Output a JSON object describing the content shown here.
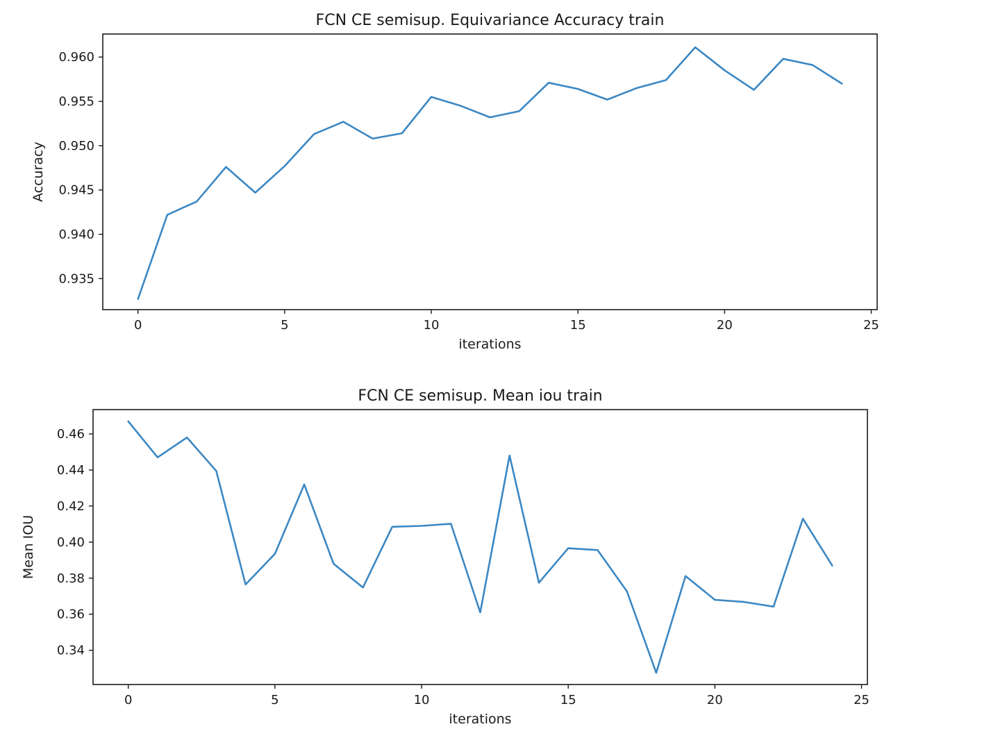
{
  "colors": {
    "series": "#3b87c3"
  },
  "chart_data": [
    {
      "type": "line",
      "title": "FCN CE semisup. Equivariance Accuracy train",
      "xlabel": "iterations",
      "ylabel": "Accuracy",
      "xlim": [
        -1.2,
        25.2
      ],
      "ylim": [
        0.9315,
        0.9626
      ],
      "xticks": [
        0,
        5,
        10,
        15,
        20,
        25
      ],
      "xtick_labels": [
        "0",
        "5",
        "10",
        "15",
        "20",
        "25"
      ],
      "yticks": [
        0.935,
        0.94,
        0.945,
        0.95,
        0.955,
        0.96
      ],
      "ytick_labels": [
        "0.935",
        "0.940",
        "0.945",
        "0.950",
        "0.955",
        "0.960"
      ],
      "grid": false,
      "series": [
        {
          "x": [
            0,
            1,
            2,
            3,
            4,
            5,
            6,
            7,
            8,
            9,
            10,
            11,
            12,
            13,
            14,
            15,
            16,
            17,
            18,
            19,
            20,
            21,
            22,
            23,
            24
          ],
          "values": [
            0.9327,
            0.9422,
            0.9437,
            0.9476,
            0.9447,
            0.9477,
            0.9513,
            0.9527,
            0.9508,
            0.9514,
            0.9555,
            0.9545,
            0.9532,
            0.9539,
            0.9571,
            0.9564,
            0.9552,
            0.9565,
            0.9574,
            0.9611,
            0.9585,
            0.9563,
            0.9598,
            0.9591,
            0.957
          ]
        }
      ]
    },
    {
      "type": "line",
      "title": "FCN CE semisup. Mean iou train",
      "xlabel": "iterations",
      "ylabel": "Mean IOU",
      "xlim": [
        -1.2,
        25.2
      ],
      "ylim": [
        0.321,
        0.4735
      ],
      "xticks": [
        0,
        5,
        10,
        15,
        20,
        25
      ],
      "xtick_labels": [
        "0",
        "5",
        "10",
        "15",
        "20",
        "25"
      ],
      "yticks": [
        0.34,
        0.36,
        0.38,
        0.4,
        0.42,
        0.44,
        0.46
      ],
      "ytick_labels": [
        "0.34",
        "0.36",
        "0.38",
        "0.40",
        "0.42",
        "0.44",
        "0.46"
      ],
      "grid": false,
      "series": [
        {
          "x": [
            0,
            1,
            2,
            3,
            4,
            5,
            6,
            7,
            8,
            9,
            10,
            11,
            12,
            13,
            14,
            15,
            16,
            17,
            18,
            19,
            20,
            21,
            22,
            23,
            24
          ],
          "values": [
            0.467,
            0.447,
            0.458,
            0.4395,
            0.3765,
            0.3935,
            0.432,
            0.388,
            0.3748,
            0.4085,
            0.409,
            0.4102,
            0.361,
            0.448,
            0.3775,
            0.3966,
            0.3956,
            0.3727,
            0.3275,
            0.3812,
            0.368,
            0.3668,
            0.3642,
            0.413,
            0.387
          ]
        }
      ]
    }
  ]
}
